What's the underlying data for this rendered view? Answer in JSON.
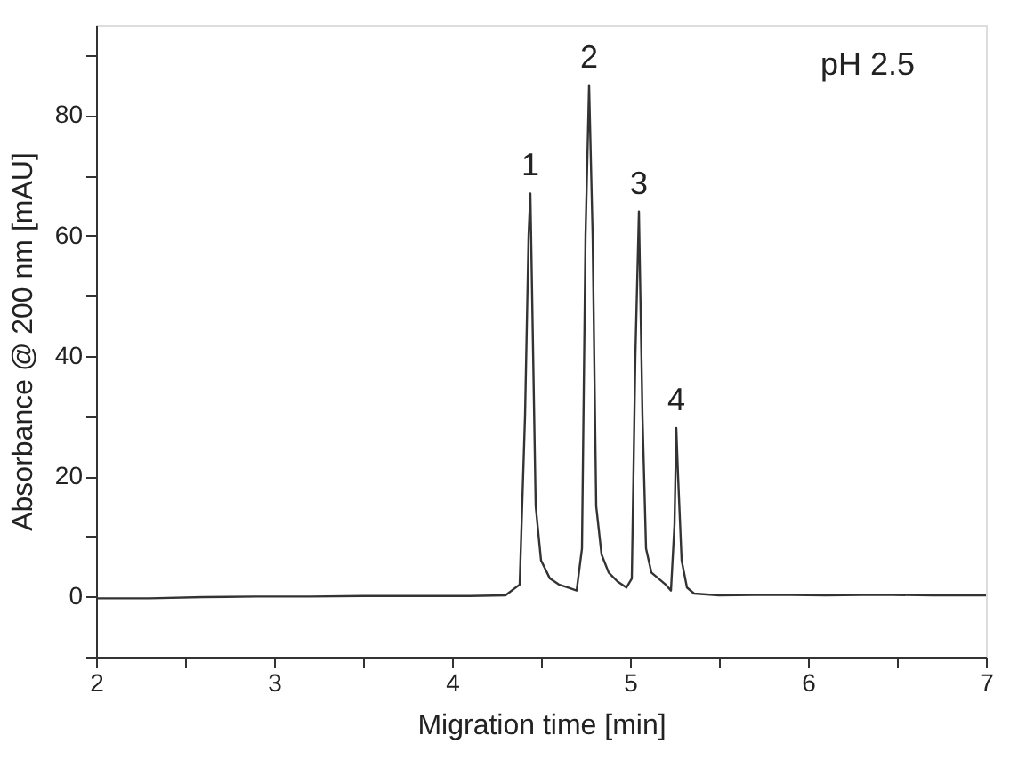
{
  "chart_data": {
    "type": "line",
    "xlabel": "Migration time [min]",
    "ylabel": "Absorbance @ 200 nm [mAU]",
    "x": [
      2.0,
      2.3,
      2.6,
      2.9,
      3.2,
      3.5,
      3.8,
      4.1,
      4.3,
      4.38,
      4.41,
      4.43,
      4.44,
      4.45,
      4.47,
      4.5,
      4.55,
      4.6,
      4.65,
      4.7,
      4.73,
      4.75,
      4.77,
      4.79,
      4.81,
      4.84,
      4.88,
      4.93,
      4.98,
      5.01,
      5.03,
      5.05,
      5.07,
      5.09,
      5.12,
      5.16,
      5.2,
      5.23,
      5.25,
      5.26,
      5.27,
      5.29,
      5.32,
      5.36,
      5.5,
      5.8,
      6.1,
      6.4,
      6.7,
      7.0
    ],
    "series": [
      {
        "color": "#333333",
        "values": [
          -0.3,
          -0.3,
          -0.1,
          0,
          0,
          0.1,
          0.1,
          0.1,
          0.2,
          2,
          30,
          60,
          67,
          50,
          15,
          6,
          3,
          2,
          1.5,
          1,
          8,
          60,
          85,
          60,
          15,
          7,
          4,
          2.5,
          1.5,
          3,
          40,
          64,
          30,
          8,
          4,
          3,
          2,
          1,
          12,
          28,
          20,
          6,
          1.5,
          0.5,
          0.2,
          0.3,
          0.2,
          0.3,
          0.2,
          0.2
        ]
      }
    ],
    "xlim": [
      2,
      7
    ],
    "xticks": [
      2,
      {
        "value": 2.5,
        "label": null
      },
      3,
      {
        "value": 3.5,
        "label": null
      },
      4,
      {
        "value": 4.5,
        "label": null
      },
      5,
      {
        "value": 5.5,
        "label": null
      },
      6,
      {
        "value": 6.5,
        "label": null
      },
      7
    ],
    "ylim": [
      -10,
      95
    ],
    "yticks": [
      {
        "value": -10,
        "label": null
      },
      0,
      {
        "value": 10,
        "label": null
      },
      20,
      {
        "value": 30,
        "label": null
      },
      40,
      {
        "value": 50,
        "label": null
      },
      60,
      {
        "value": 70,
        "label": null
      },
      80,
      {
        "value": 90,
        "label": null
      }
    ],
    "annotations": [
      {
        "text": "1",
        "x": 4.44,
        "y": 67
      },
      {
        "text": "2",
        "x": 4.77,
        "y": 85
      },
      {
        "text": "3",
        "x": 5.05,
        "y": 64
      },
      {
        "text": "4",
        "x": 5.26,
        "y": 28
      },
      "pH 2.5"
    ],
    "grid": false,
    "marker": "none",
    "line_style": "solid"
  }
}
